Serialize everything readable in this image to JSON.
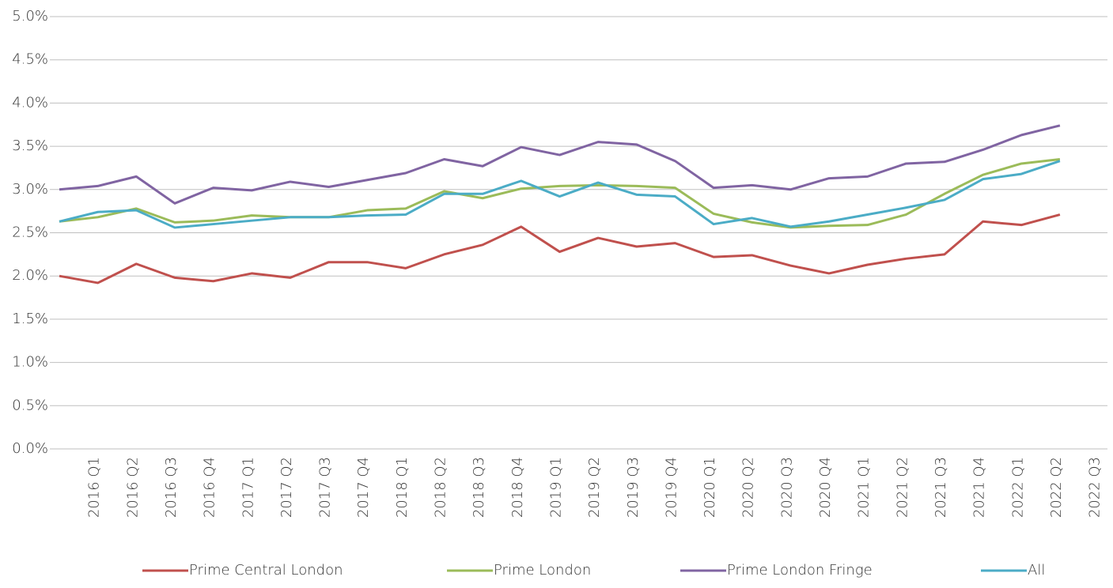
{
  "chart_data": {
    "type": "line",
    "categories": [
      null,
      "2016 Q1",
      "2016 Q2",
      "2016 Q3",
      "2016 Q4",
      "2017 Q1",
      "2017 Q2",
      "2017 Q3",
      "2017 Q4",
      "2018 Q1",
      "2018 Q2",
      "2018 Q3",
      "2018 Q4",
      "2019 Q1",
      "2019 Q2",
      "2019 Q3",
      "2019 Q4",
      "2020 Q1",
      "2020 Q2",
      "2020 Q3",
      "2020 Q4",
      "2021 Q1",
      "2021 Q2",
      "2021 Q3",
      "2021 Q4",
      "2022 Q1",
      "2022 Q2",
      "2022 Q3"
    ],
    "series": [
      {
        "name": "Prime Central London",
        "color": "#c0504d",
        "values": [
          2.0,
          1.92,
          2.14,
          1.98,
          1.94,
          2.03,
          1.98,
          2.16,
          2.16,
          2.09,
          2.25,
          2.36,
          2.57,
          2.28,
          2.44,
          2.34,
          2.38,
          2.22,
          2.24,
          2.12,
          2.03,
          2.13,
          2.2,
          2.25,
          2.63,
          2.59,
          2.71,
          null
        ]
      },
      {
        "name": "Prime London",
        "color": "#9bbb59",
        "values": [
          2.63,
          2.68,
          2.78,
          2.62,
          2.64,
          2.7,
          2.68,
          2.68,
          2.76,
          2.78,
          2.98,
          2.9,
          3.01,
          3.04,
          3.05,
          3.04,
          3.02,
          2.72,
          2.62,
          2.56,
          2.58,
          2.59,
          2.71,
          2.95,
          3.17,
          3.3,
          3.35,
          null
        ]
      },
      {
        "name": "Prime London Fringe",
        "color": "#8064a2",
        "values": [
          3.0,
          3.04,
          3.15,
          2.84,
          3.02,
          2.99,
          3.09,
          3.03,
          3.11,
          3.19,
          3.35,
          3.27,
          3.49,
          3.4,
          3.55,
          3.52,
          3.33,
          3.02,
          3.05,
          3.0,
          3.13,
          3.15,
          3.3,
          3.32,
          3.46,
          3.63,
          3.74,
          null
        ]
      },
      {
        "name": "All",
        "color": "#4bacc6",
        "values": [
          2.63,
          2.74,
          2.76,
          2.56,
          2.6,
          2.64,
          2.68,
          2.68,
          2.7,
          2.71,
          2.95,
          2.95,
          3.1,
          2.92,
          3.08,
          2.94,
          2.92,
          2.6,
          2.67,
          2.57,
          2.63,
          2.71,
          2.79,
          2.88,
          3.12,
          3.18,
          3.33,
          null
        ]
      }
    ],
    "ylim": [
      0,
      5
    ],
    "yticks": [
      {
        "value": 0,
        "label": "0.0%"
      },
      {
        "value": 0.5,
        "label": "0.5%"
      },
      {
        "value": 1,
        "label": "1.0%"
      },
      {
        "value": 1.5,
        "label": "1.5%"
      },
      {
        "value": 2,
        "label": "2.0%"
      },
      {
        "value": 2.5,
        "label": "2.5%"
      },
      {
        "value": 3,
        "label": "3.0%"
      },
      {
        "value": 3.5,
        "label": "3.5%"
      },
      {
        "value": 4,
        "label": "4.0%"
      },
      {
        "value": 4.5,
        "label": "4.5%"
      },
      {
        "value": 5,
        "label": "5.0%"
      }
    ],
    "grid": true,
    "legend": "bottom"
  }
}
